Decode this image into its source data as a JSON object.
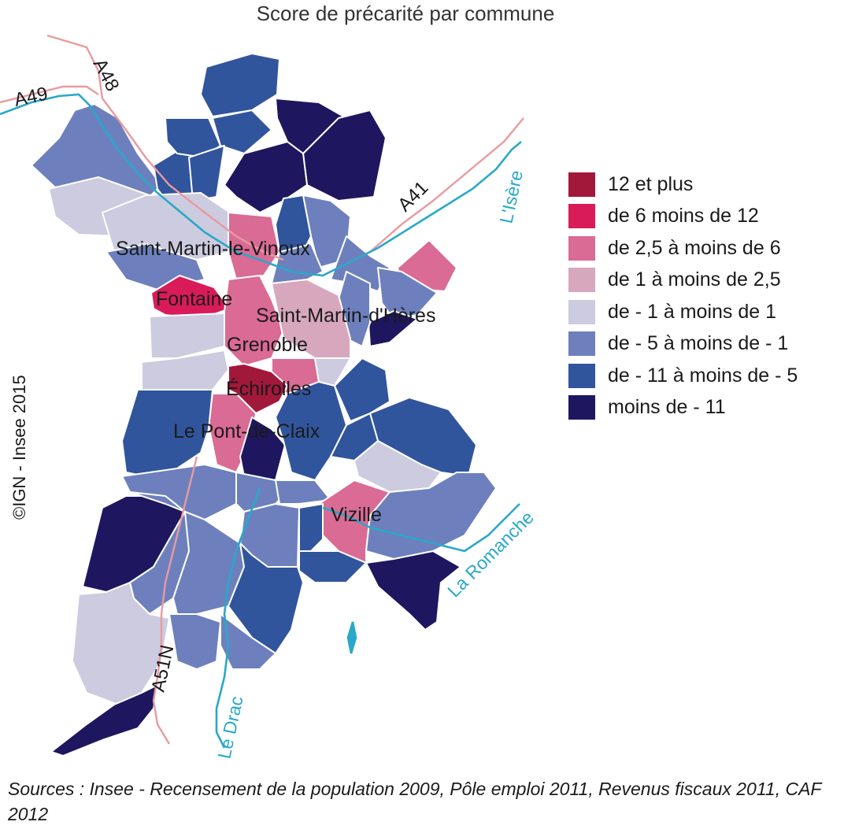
{
  "title": "Score de précarité par commune",
  "legend": [
    {
      "label": "12 et plus",
      "color": "#a2183b"
    },
    {
      "label": "de 6 moins de 12",
      "color": "#d91b59"
    },
    {
      "label": "de 2,5 à moins de 6",
      "color": "#da6b95"
    },
    {
      "label": "de 1 à moins de 2,5",
      "color": "#d7a8bd"
    },
    {
      "label": "de - 1 à moins de 1",
      "color": "#cccbdf"
    },
    {
      "label": "de - 5 à moins de - 1",
      "color": "#6d80bd"
    },
    {
      "label": "de - 11 à moins de - 5",
      "color": "#31559c"
    },
    {
      "label": "moins de - 11",
      "color": "#1e175f"
    }
  ],
  "cities": {
    "saint_martin_le_vinoux": "Saint-Martin-le-Vinoux",
    "fontaine": "Fontaine",
    "saint_martin_d_heres": "Saint-Martin-d'Hères",
    "grenoble": "Grenoble",
    "echirolles": "Échirolles",
    "le_pont_de_claix": "Le Pont-de-Claix",
    "vizille": "Vizille"
  },
  "roads": {
    "a49": "A49",
    "a48": "A48",
    "a41": "A41",
    "a51n": "A51N"
  },
  "rivers": {
    "isere": "L'Isère",
    "romanche": "La Romanche",
    "drac": "Le Drac"
  },
  "copyright": "©IGN - Insee 2015",
  "sources": "Sources : Insee - Recensement de la population 2009, Pôle emploi 2011, Revenus fiscaux 2011, CAF 2012",
  "colors": {
    "river": "#29a8c9",
    "road": "#e89aa0",
    "border": "#ffffff"
  }
}
